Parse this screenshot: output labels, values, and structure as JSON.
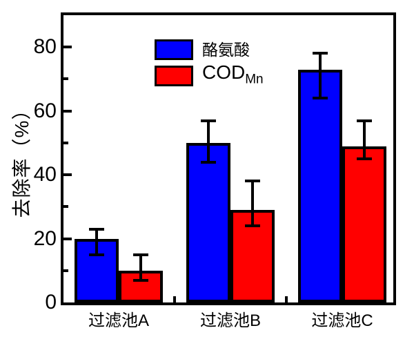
{
  "chart_data": {
    "type": "bar",
    "title": "",
    "categories": [
      "过滤池A",
      "过滤池B",
      "过滤池C"
    ],
    "series": [
      {
        "name": "酪氨酸",
        "color": "#0000FF",
        "values": [
          20,
          50,
          73
        ],
        "error_high": [
          23,
          57,
          78
        ],
        "error_low": [
          15,
          44,
          64
        ]
      },
      {
        "name": "COD_Mn",
        "display": {
          "main": "COD",
          "sub": "Mn"
        },
        "color": "#FF0000",
        "values": [
          10,
          29,
          49
        ],
        "error_high": [
          15,
          38,
          57
        ],
        "error_low": [
          7,
          24,
          45
        ]
      }
    ],
    "xlabel": "",
    "ylabel": "去除率（%）",
    "ylim": [
      0,
      90
    ],
    "yticks_major": [
      0,
      20,
      40,
      60,
      80
    ],
    "yticks_minor": [
      10,
      30,
      50,
      70
    ],
    "grid": false,
    "legend_position": "top-left"
  },
  "colors": {
    "bar_blue": "#0000FF",
    "bar_red": "#FF0000",
    "axis": "#000000",
    "background": "#FFFFFF"
  }
}
